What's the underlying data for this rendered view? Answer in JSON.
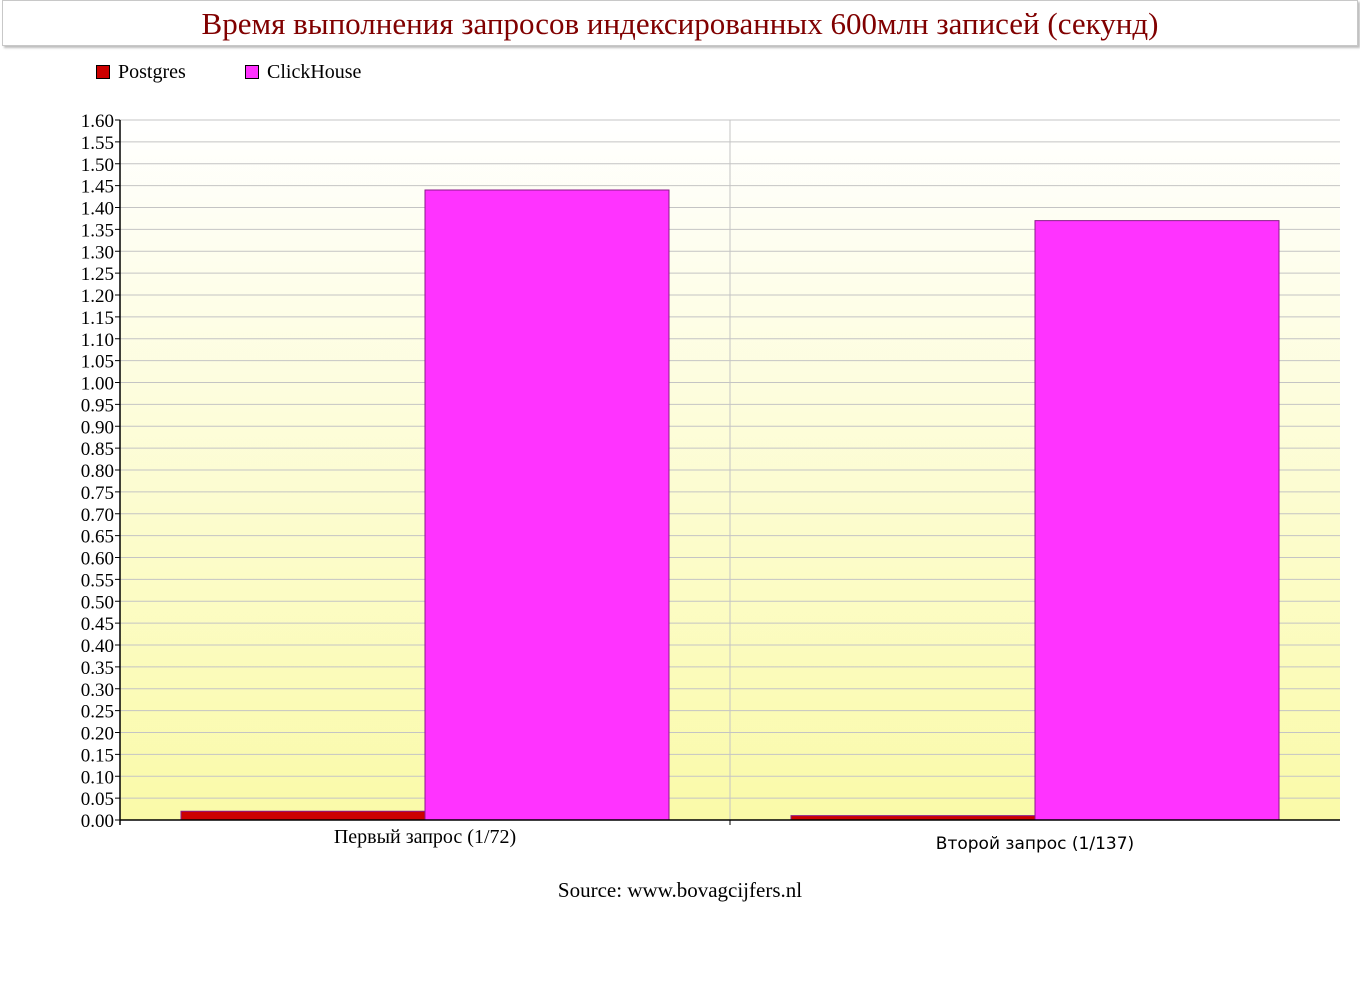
{
  "chart_data": {
    "type": "bar",
    "title": "Время выполнения запросов индексированных 600млн записей (секунд)",
    "categories": [
      "Первый запрос (1/72)",
      "Второй запрос (1/137)"
    ],
    "series": [
      {
        "name": "Postgres",
        "color": "#cc0000",
        "values": [
          0.02,
          0.01
        ]
      },
      {
        "name": "ClickHouse",
        "color": "#ff33ff",
        "values": [
          1.44,
          1.37
        ]
      }
    ],
    "ylim": [
      0,
      1.6
    ],
    "ytick_step": 0.05,
    "grid": true,
    "legend": "top-left",
    "source": "Source: www.bovagcijfers.nl"
  }
}
